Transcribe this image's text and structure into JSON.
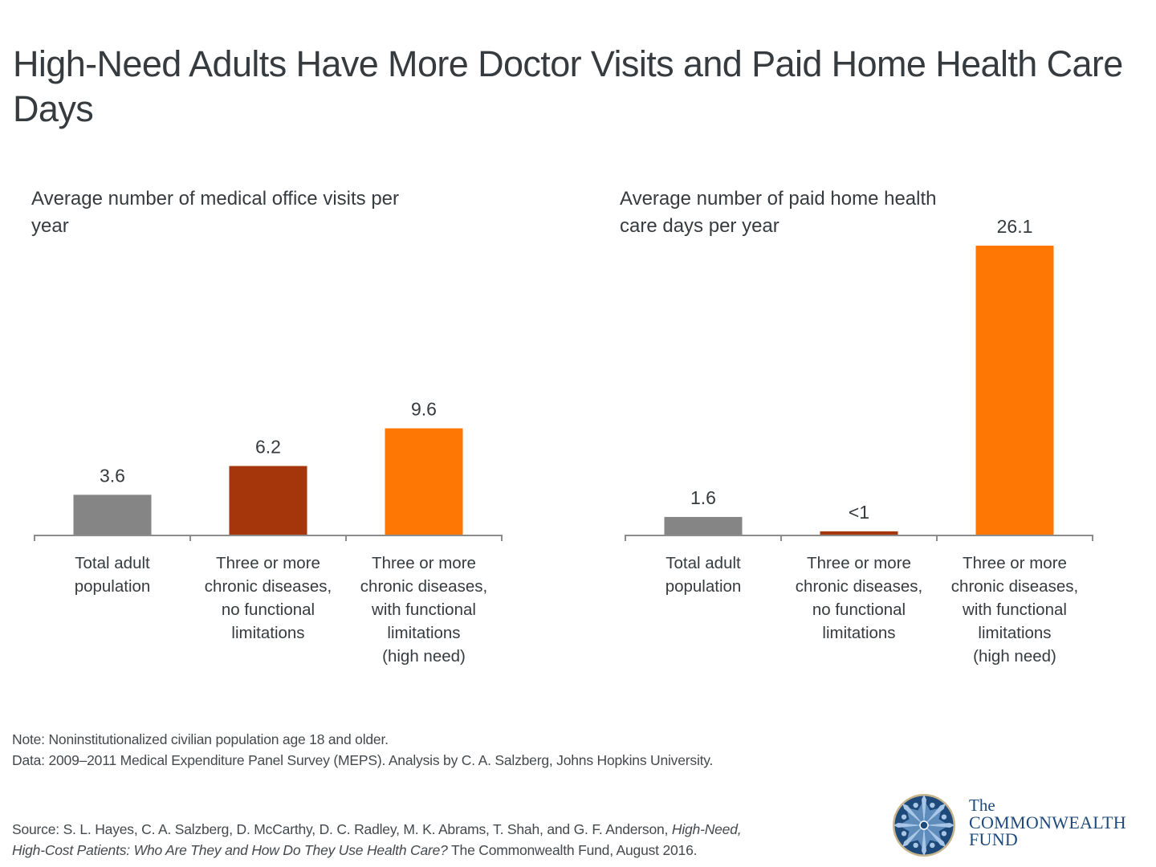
{
  "title": "High-Need Adults Have More Doctor Visits and Paid Home Health Care Days",
  "colors": {
    "total": "#858585",
    "no_limitations": "#a5350a",
    "high_need": "#fe7603",
    "axis": "#8c8c8c",
    "text": "#363b3f"
  },
  "chart_data": [
    {
      "type": "bar",
      "title": "Average number of medical office visits per year",
      "categories": [
        "Total adult population",
        "Three or more chronic diseases, no functional limitations",
        "Three or more chronic diseases, with functional limitations (high need)"
      ],
      "category_lines": [
        [
          "Total adult",
          "population"
        ],
        [
          "Three or more",
          "chronic diseases,",
          "no functional",
          "limitations"
        ],
        [
          "Three or more",
          "chronic diseases,",
          "with functional",
          "limitations",
          "(high need)"
        ]
      ],
      "values": [
        3.6,
        6.2,
        9.6
      ],
      "data_labels": [
        "3.6",
        "6.2",
        "9.6"
      ],
      "xlabel": "",
      "ylabel": "",
      "ylim": [
        0,
        26.1
      ],
      "grid": false,
      "legend": "none"
    },
    {
      "type": "bar",
      "title": "Average number of paid home health care days per year",
      "categories": [
        "Total adult population",
        "Three or more chronic diseases, no functional limitations",
        "Three or more chronic diseases, with functional limitations (high need)"
      ],
      "category_lines": [
        [
          "Total adult",
          "population"
        ],
        [
          "Three or more",
          "chronic diseases,",
          "no functional",
          "limitations"
        ],
        [
          "Three or more",
          "chronic diseases,",
          "with functional",
          "limitations",
          "(high need)"
        ]
      ],
      "values": [
        1.6,
        0.3,
        26.1
      ],
      "data_labels": [
        "1.6",
        "<1",
        "26.1"
      ],
      "xlabel": "",
      "ylabel": "",
      "ylim": [
        0,
        26.1
      ],
      "grid": false,
      "legend": "none"
    }
  ],
  "notes": {
    "note": "Note: Noninstitutionalized civilian population age 18 and older.",
    "data": "Data: 2009–2011 Medical Expenditure Panel Survey (MEPS). Analysis by C. A. Salzberg, Johns Hopkins University.",
    "source_prefix": "Source: S. L. Hayes, C. A. Salzberg, D. McCarthy, D. C. Radley, M. K. Abrams, T. Shah, and G. F. Anderson, ",
    "source_title_1": "High-Need,",
    "source_title_2": "High-Cost Patients: Who Are They and How Do They Use Health Care?",
    "source_suffix": " The Commonwealth Fund, August 2016."
  },
  "logo": {
    "the": "The",
    "line1": "COMMONWEALTH",
    "line2": "FUND",
    "icon": "commonwealth-fund-emblem-icon"
  }
}
